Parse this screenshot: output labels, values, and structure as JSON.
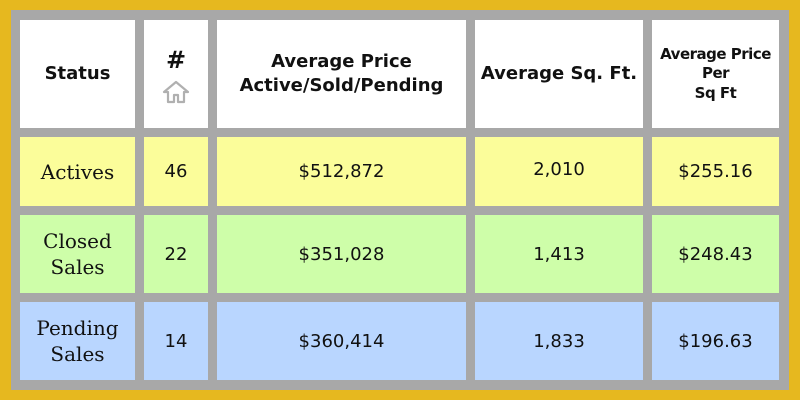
{
  "header": {
    "status": "Status",
    "count": "#",
    "avg_price_line1": "Average Price",
    "avg_price_line2": "Active/Sold/Pending",
    "avg_sqft": "Average Sq. Ft.",
    "ppsf_line1": "Average Price",
    "ppsf_line2": "Per",
    "ppsf_line3": "Sq Ft",
    "count_icon": "home-icon"
  },
  "rows": [
    {
      "status_line1": "Actives",
      "status_line2": "",
      "count": "46",
      "avg_price": "$512,872",
      "avg_sqft": "2,010",
      "ppsf": "$255.16",
      "color": "#fbfd9a"
    },
    {
      "status_line1": "Closed",
      "status_line2": "Sales",
      "count": "22",
      "avg_price": "$351,028",
      "avg_sqft": "1,413",
      "ppsf": "$248.43",
      "color": "#cefea9"
    },
    {
      "status_line1": "Pending",
      "status_line2": "Sales",
      "count": "14",
      "avg_price": "$360,414",
      "avg_sqft": "1,833",
      "ppsf": "$196.63",
      "color": "#b9d6ff"
    }
  ],
  "colors": {
    "border_outer": "#e6b81f",
    "grid": "#a8a8a8"
  }
}
